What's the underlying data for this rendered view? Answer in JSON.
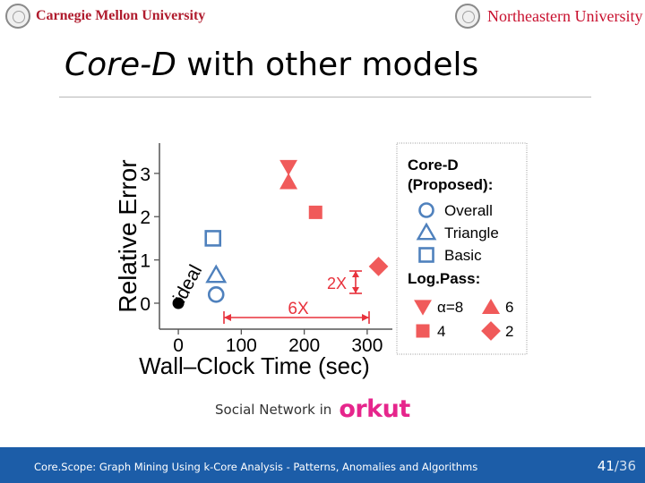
{
  "header": {
    "left_logo_text": "Carnegie Mellon University",
    "right_logo_text": "Northeastern University"
  },
  "slide": {
    "title_italic": "Core-D",
    "title_rest": " with other models",
    "caption": "Social Network in",
    "caption_logo": "orkut"
  },
  "chart_data": {
    "type": "scatter",
    "xlabel": "Wall–Clock Time (sec)",
    "ylabel": "Relative Error",
    "x_ticks": [
      0,
      100,
      200,
      300
    ],
    "y_ticks": [
      0,
      1,
      2,
      3
    ],
    "xlim": [
      -30,
      340
    ],
    "ylim": [
      -0.6,
      3.7
    ],
    "grid": false,
    "points": [
      {
        "name": "ideal",
        "x": 0,
        "y": 0,
        "marker": "dot",
        "color": "#000000"
      },
      {
        "name": "Core-D Overall",
        "x": 60,
        "y": 0.2,
        "marker": "circle",
        "color": "#4f81bd"
      },
      {
        "name": "Core-D Triangle",
        "x": 60,
        "y": 0.65,
        "marker": "triangle",
        "color": "#4f81bd"
      },
      {
        "name": "Core-D Basic",
        "x": 55,
        "y": 1.5,
        "marker": "square",
        "color": "#4f81bd"
      },
      {
        "name": "LogPass α=8",
        "x": 175,
        "y": 3.15,
        "marker": "triangle-down",
        "color": "#f05a5a"
      },
      {
        "name": "LogPass 6",
        "x": 175,
        "y": 2.8,
        "marker": "triangle",
        "color": "#f05a5a"
      },
      {
        "name": "LogPass 4",
        "x": 218,
        "y": 2.1,
        "marker": "square",
        "color": "#f05a5a"
      },
      {
        "name": "LogPass 2",
        "x": 318,
        "y": 0.85,
        "marker": "diamond",
        "color": "#f05a5a"
      }
    ],
    "annotations": {
      "ideal_label": "ideal",
      "speedup_label": "6X",
      "error_label": "2X"
    },
    "legend": {
      "placement": "right",
      "proposed_title": "Core-D\n(Proposed):",
      "proposed_items": [
        {
          "label": "Overall",
          "marker": "circle"
        },
        {
          "label": "Triangle",
          "marker": "triangle"
        },
        {
          "label": "Basic",
          "marker": "square"
        }
      ],
      "logpass_title": "Log.Pass:",
      "logpass_items": [
        {
          "label": "α=8",
          "marker": "triangle-down"
        },
        {
          "label": "6",
          "marker": "triangle"
        },
        {
          "label": "4",
          "marker": "square"
        },
        {
          "label": "2",
          "marker": "diamond"
        }
      ]
    }
  },
  "footer": {
    "text": "Core.Scope: Graph Mining Using k-Core Analysis - Patterns, Anomalies and Algorithms",
    "page_current": "41",
    "page_sep": "/",
    "page_total": "36"
  }
}
